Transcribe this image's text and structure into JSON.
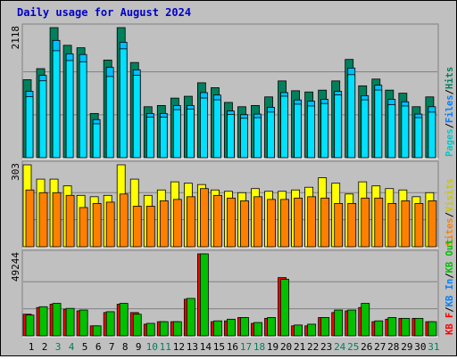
{
  "title": "Daily usage for August 2024",
  "colors": {
    "background": "#c0c0c0",
    "hits": "#00805c",
    "files": "#00c0ff",
    "pages": "#00e0ff",
    "visits": "#ffff00",
    "sites": "#ff8000",
    "kb_in": "#00c000",
    "kb_out": "#00c000",
    "kb_f": "#ff0000",
    "title": "#0000c8",
    "label_hits": "#00805c",
    "label_files": "#0080ff",
    "label_pages": "#00c8c8",
    "label_visits": "#c8c800",
    "label_sites": "#ff8000",
    "label_kb_in": "#0080ff",
    "label_kb_out": "#00c000",
    "label_kb_f": "#ff0000",
    "weekend_day": "#00805c",
    "weekday": "#000000"
  },
  "chart_data": {
    "type": "bar",
    "title": "Daily usage for August 2024",
    "days": [
      "1",
      "2",
      "3",
      "4",
      "5",
      "6",
      "7",
      "8",
      "9",
      "10",
      "11",
      "12",
      "13",
      "14",
      "15",
      "16",
      "17",
      "18",
      "19",
      "20",
      "21",
      "22",
      "23",
      "24",
      "25",
      "26",
      "27",
      "28",
      "29",
      "30",
      "31"
    ],
    "weekend_days": [
      "3",
      "4",
      "10",
      "11",
      "17",
      "18",
      "24",
      "25",
      "31"
    ],
    "panels": [
      {
        "id": "hits",
        "ymax_label": "2118",
        "ymax": 2118,
        "legend": [
          "Pages",
          "Files",
          "Hits"
        ],
        "series": [
          {
            "name": "Hits",
            "values": [
              1270,
              1450,
              2118,
              1830,
              1790,
              720,
              1590,
              2118,
              1550,
              830,
              850,
              970,
              1000,
              1220,
              1140,
              900,
              830,
              850,
              990,
              1250,
              1090,
              1070,
              1100,
              1250,
              1600,
              1170,
              1280,
              1100,
              1050,
              830,
              990
            ]
          },
          {
            "name": "Files",
            "values": [
              1080,
              1340,
              1910,
              1690,
              1680,
              620,
              1470,
              1880,
              1430,
              720,
              720,
              850,
              850,
              1060,
              1020,
              760,
              700,
              710,
              820,
              1060,
              940,
              920,
              950,
              1080,
              1460,
              1010,
              1180,
              950,
              910,
              710,
              830
            ]
          },
          {
            "name": "Pages",
            "values": [
              1050,
              1310,
              1800,
              1640,
              1620,
              610,
              1380,
              1830,
              1400,
              720,
              720,
              840,
              850,
              1030,
              1000,
              760,
              700,
              710,
              800,
              1060,
              930,
              900,
              940,
              1080,
              1410,
              1000,
              1160,
              920,
              900,
              710,
              800
            ]
          }
        ]
      },
      {
        "id": "visits",
        "ymax_label": "303",
        "ymax": 303,
        "legend": [
          "Sites",
          "Visits"
        ],
        "series": [
          {
            "name": "Visits",
            "values": [
              303,
              250,
              250,
              225,
              190,
              185,
              190,
              303,
              250,
              190,
              210,
              240,
              235,
              230,
              210,
              205,
              200,
              215,
              205,
              205,
              210,
              220,
              255,
              235,
              195,
              240,
              225,
              215,
              210,
              185,
              200
            ]
          },
          {
            "name": "Sites",
            "values": [
              210,
              200,
              200,
              190,
              145,
              160,
              165,
              195,
              150,
              150,
              170,
              175,
              185,
              215,
              190,
              180,
              170,
              185,
              175,
              175,
              180,
              185,
              180,
              160,
              160,
              180,
              180,
              160,
              170,
              160,
              170
            ]
          }
        ]
      },
      {
        "id": "kbytes",
        "ymax_label": "49244",
        "ymax": 49244,
        "legend": [
          "KB F",
          "KB In",
          "KB Out"
        ],
        "series": [
          {
            "name": "KB F",
            "values": [
              13000,
              17000,
              19000,
              16000,
              15000,
              6000,
              14000,
              19000,
              14000,
              7000,
              8500,
              8500,
              22000,
              49244,
              8500,
              9000,
              11000,
              7500,
              10500,
              35000,
              6000,
              6000,
              11000,
              14000,
              15000,
              17000,
              8500,
              10000,
              10500,
              10500,
              8500
            ]
          },
          {
            "name": "KB In",
            "values": [
              12500,
              17500,
              19500,
              16500,
              15500,
              6000,
              14500,
              19500,
              13000,
              7500,
              8500,
              8500,
              22500,
              49244,
              9000,
              10000,
              11000,
              8000,
              11000,
              34000,
              6500,
              7000,
              11000,
              15500,
              15500,
              19500,
              9000,
              11000,
              10500,
              10500,
              8500
            ]
          }
        ]
      }
    ]
  }
}
